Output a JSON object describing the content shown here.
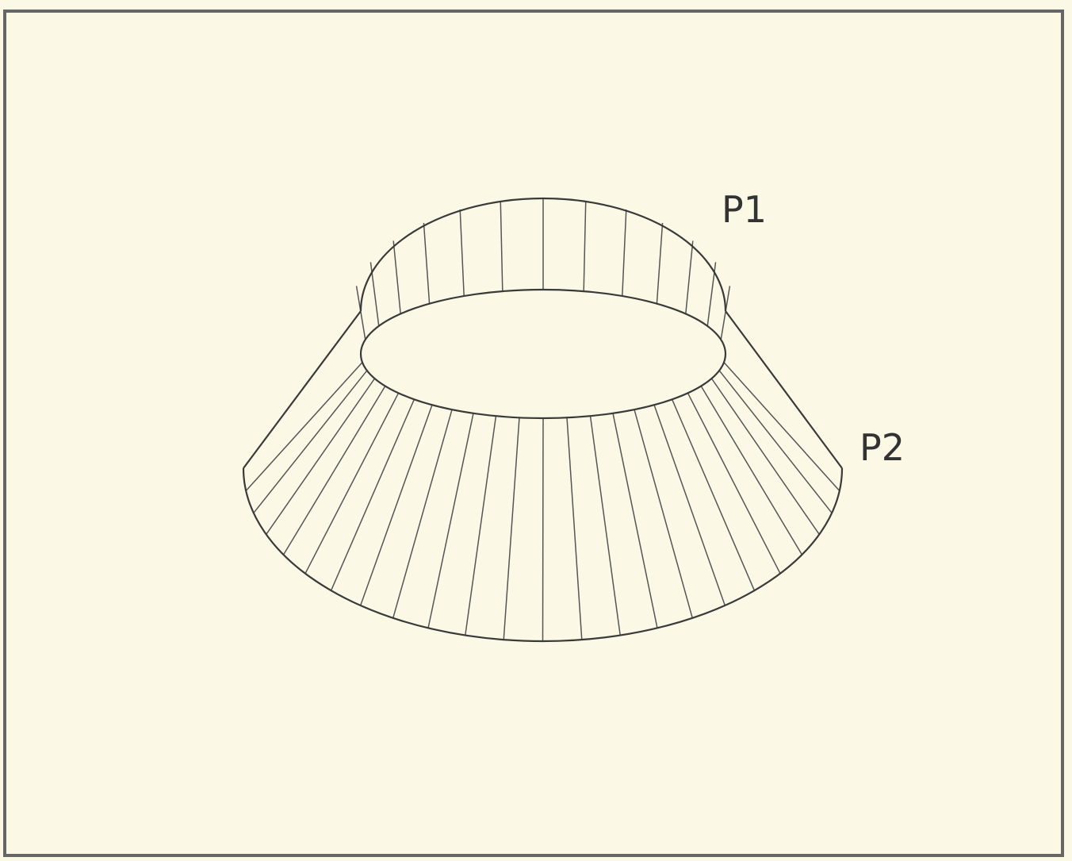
{
  "labels": {
    "p1": "P1",
    "p2": "P2"
  }
}
